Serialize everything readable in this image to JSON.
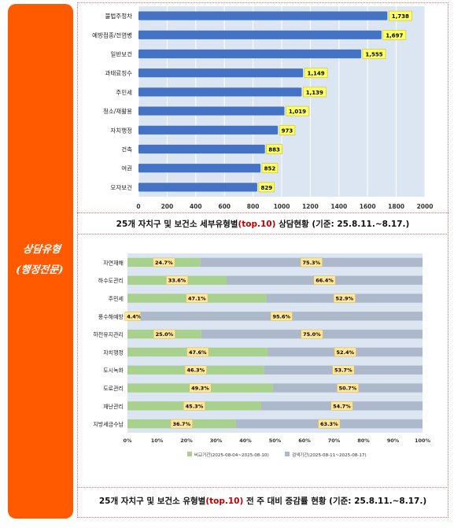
{
  "sidebar": {
    "line1": "상담유형",
    "line2": "(행정전문)"
  },
  "caption1": {
    "pre": "25개 자치구 및 보건소 세부유형별",
    "highlight": "(top.10)",
    "post": " 상담현황  (기준: 25.8.11.~8.17.)"
  },
  "caption2": {
    "pre": "25개 자치구 및 보건소 유형별",
    "highlight": "(top.10)",
    "post": " 전 주 대비 증감률 현황 (기준: 25.8.11.~8.17.)"
  },
  "chart_data": [
    {
      "type": "bar",
      "orientation": "horizontal",
      "categories": [
        "불법주정차",
        "예방접종/전염병",
        "일반보건",
        "과태료징수",
        "주민세",
        "청소/재활용",
        "자치행정",
        "건축",
        "여권",
        "모자보건"
      ],
      "values": [
        1738,
        1697,
        1555,
        1149,
        1139,
        1019,
        973,
        883,
        852,
        829
      ],
      "value_labels": [
        "1,738",
        "1,697",
        "1,555",
        "1,149",
        "1,139",
        "1,019",
        "973",
        "883",
        "852",
        "829"
      ],
      "xlim": [
        0,
        2000
      ],
      "xticks": [
        "0",
        "200",
        "400",
        "600",
        "800",
        "1000",
        "1200",
        "1400",
        "1600",
        "1800",
        "2000"
      ],
      "grid": true,
      "colors": {
        "bar": "#4472c4",
        "plot_bg": "#dce6f2",
        "label_bg": "#ffff66"
      }
    },
    {
      "type": "bar",
      "orientation": "horizontal",
      "stacked": "percent",
      "categories": [
        "자연재해",
        "하수도관리",
        "주민세",
        "풍수해예방",
        "하천유지관리",
        "자치행정",
        "도시녹화",
        "도로관리",
        "재난관리",
        "지방세금수납"
      ],
      "series": [
        {
          "name": "비교기간(2025-08-04~2025-08-10)",
          "values": [
            24.7,
            33.6,
            47.1,
            4.4,
            25.0,
            47.6,
            46.3,
            49.3,
            45.3,
            36.7
          ],
          "labels": [
            "24.7%",
            "33.6%",
            "47.1%",
            "4.4%",
            "25.0%",
            "47.6%",
            "46.3%",
            "49.3%",
            "45.3%",
            "36.7%"
          ],
          "color": "#a9d18e"
        },
        {
          "name": "검색기간(2025-08-11~2025-08-17)",
          "values": [
            75.3,
            66.4,
            52.9,
            95.6,
            75.0,
            52.4,
            53.7,
            50.7,
            54.7,
            63.3
          ],
          "labels": [
            "75.3%",
            "66.4%",
            "52.9%",
            "95.6%",
            "75.0%",
            "52.4%",
            "53.7%",
            "50.7%",
            "54.7%",
            "63.3%"
          ],
          "color": "#adb9ca"
        }
      ],
      "xticks": [
        "0%",
        "10%",
        "20%",
        "30%",
        "40%",
        "50%",
        "60%",
        "70%",
        "80%",
        "90%",
        "100%"
      ],
      "legend": "bottom",
      "colors": {
        "plot_bg": "#dce6f2",
        "label_bg": "#ffe699"
      }
    }
  ]
}
